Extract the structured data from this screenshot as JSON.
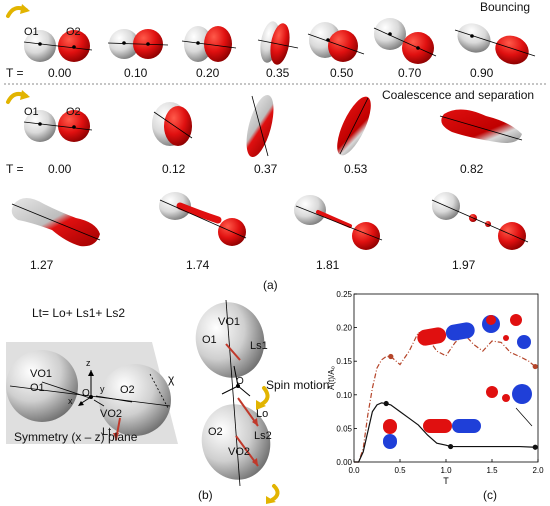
{
  "panel_a": {
    "bouncing_title": "Bouncing",
    "coalescence_title": "Coalescence and separation",
    "t_prefix": "T =",
    "o1": "O1",
    "o2": "O2",
    "bouncing_times": [
      "0.00",
      "0.10",
      "0.20",
      "0.35",
      "0.50",
      "0.70",
      "0.90"
    ],
    "coal_row1_times": [
      "0.00",
      "0.12",
      "0.37",
      "0.53",
      "0.82"
    ],
    "coal_row2_times": [
      "1.27",
      "1.74",
      "1.81",
      "1.97"
    ],
    "caption": "(a)"
  },
  "panel_b": {
    "equation": "Lt= Lo+ Ls1+ Ls2",
    "labels": {
      "vo1_left": "VO1",
      "o1_left": "O1",
      "o_left": "O",
      "o2_left": "O2",
      "vo2_left": "VO2",
      "lt": "Lt",
      "chi": "χ",
      "z": "z",
      "x": "x",
      "y": "y",
      "symmetry": "Symmetry (x – z) plane",
      "vo1_right": "VO1",
      "o1_right": "O1",
      "ls1": "Ls1",
      "o_right": "O",
      "spin": "Spin motion",
      "lo": "Lo",
      "o2_right": "O2",
      "ls2": "Ls2",
      "vo2_right": "VO2"
    },
    "caption": "(b)"
  },
  "panel_c": {
    "caption": "(c)",
    "colors": {
      "upper": "#b5452a",
      "lower": "#111111",
      "drop_red": "#e01010",
      "drop_blue": "#1f3fd8"
    }
  },
  "chart_data": {
    "type": "line",
    "xlabel": "T",
    "ylabel": "A(t)/A₀",
    "xlim": [
      0,
      2.0
    ],
    "ylim": [
      0,
      0.25
    ],
    "xticks": [
      "0.0",
      "0.5",
      "1.0",
      "1.5",
      "2.0"
    ],
    "yticks": [
      "0.00",
      "0.05",
      "0.10",
      "0.15",
      "0.20",
      "0.25"
    ],
    "series": [
      {
        "style": "dash-dot",
        "color": "#b5452a",
        "x": [
          0.0,
          0.05,
          0.1,
          0.15,
          0.2,
          0.25,
          0.3,
          0.35,
          0.4,
          0.5,
          0.6,
          0.7,
          0.8,
          0.9,
          1.0,
          1.1,
          1.2,
          1.3,
          1.4,
          1.5,
          1.6,
          1.7,
          1.8,
          1.9,
          1.97
        ],
        "y": [
          0.0,
          0.0,
          0.02,
          0.07,
          0.11,
          0.14,
          0.152,
          0.157,
          0.157,
          0.145,
          0.165,
          0.193,
          0.185,
          0.165,
          0.158,
          0.178,
          0.19,
          0.175,
          0.165,
          0.18,
          0.178,
          0.163,
          0.157,
          0.15,
          0.142
        ],
        "markers_x": [
          0.4,
          1.97
        ],
        "markers_y": [
          0.157,
          0.142
        ]
      },
      {
        "style": "solid",
        "color": "#111111",
        "x": [
          0.0,
          0.05,
          0.1,
          0.15,
          0.2,
          0.25,
          0.3,
          0.35,
          0.4,
          0.5,
          0.6,
          0.7,
          0.8,
          0.9,
          1.0,
          1.05,
          1.2,
          1.4,
          1.6,
          1.8,
          1.97
        ],
        "y": [
          0.0,
          0.0,
          0.015,
          0.045,
          0.075,
          0.085,
          0.088,
          0.087,
          0.085,
          0.075,
          0.065,
          0.055,
          0.04,
          0.028,
          0.025,
          0.023,
          0.023,
          0.023,
          0.023,
          0.023,
          0.022
        ],
        "markers_x": [
          0.35,
          1.05,
          1.97
        ],
        "markers_y": [
          0.087,
          0.023,
          0.022
        ]
      }
    ]
  }
}
